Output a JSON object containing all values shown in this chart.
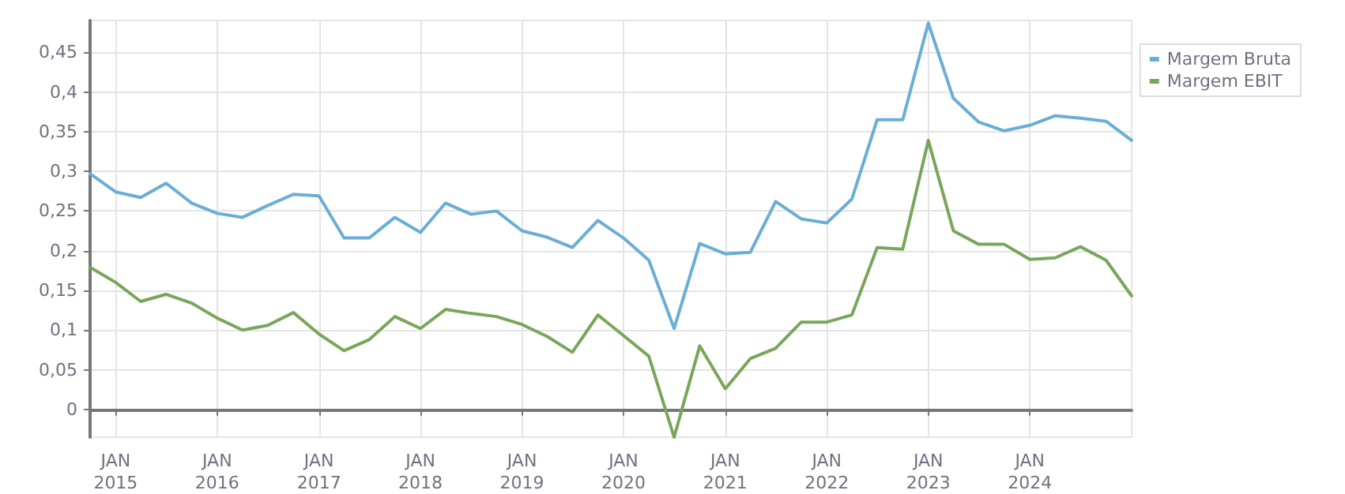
{
  "chart_data": {
    "type": "line",
    "x": [
      "2014-10",
      "2015-01",
      "2015-04",
      "2015-07",
      "2015-10",
      "2016-01",
      "2016-04",
      "2016-07",
      "2016-10",
      "2017-01",
      "2017-04",
      "2017-07",
      "2017-10",
      "2018-01",
      "2018-04",
      "2018-07",
      "2018-10",
      "2019-01",
      "2019-04",
      "2019-07",
      "2019-10",
      "2020-01",
      "2020-04",
      "2020-07",
      "2020-10",
      "2021-01",
      "2021-04",
      "2021-07",
      "2021-10",
      "2022-01",
      "2022-04",
      "2022-07",
      "2022-10",
      "2023-01",
      "2023-04",
      "2023-07",
      "2023-10",
      "2024-01",
      "2024-04",
      "2024-07",
      "2024-10",
      "2025-01"
    ],
    "series": [
      {
        "name": "Margem Bruta",
        "color": "#6aaed6",
        "values": [
          0.297,
          0.274,
          0.267,
          0.285,
          0.26,
          0.247,
          0.242,
          0.257,
          0.271,
          0.269,
          0.216,
          0.216,
          0.242,
          0.223,
          0.26,
          0.246,
          0.25,
          0.225,
          0.217,
          0.204,
          0.238,
          0.216,
          0.188,
          0.102,
          0.209,
          0.196,
          0.198,
          0.262,
          0.24,
          0.235,
          0.265,
          0.365,
          0.365,
          0.487,
          0.392,
          0.362,
          0.351,
          0.358,
          0.37,
          0.367,
          0.363,
          0.339
        ]
      },
      {
        "name": "Margem EBIT",
        "color": "#7aa65a",
        "values": [
          0.179,
          0.16,
          0.136,
          0.145,
          0.134,
          0.115,
          0.1,
          0.106,
          0.122,
          0.095,
          0.074,
          0.088,
          0.117,
          0.102,
          0.126,
          0.121,
          0.117,
          0.107,
          0.092,
          0.072,
          0.119,
          0.093,
          0.067,
          -0.035,
          0.08,
          0.026,
          0.064,
          0.077,
          0.11,
          0.11,
          0.119,
          0.204,
          0.202,
          0.339,
          0.225,
          0.208,
          0.208,
          0.189,
          0.191,
          0.205,
          0.188,
          0.143
        ]
      }
    ],
    "xlim": [
      "2014-10",
      "2025-01"
    ],
    "xticks": [
      {
        "value": "2015-01",
        "label": "JAN\n2015"
      },
      {
        "value": "2016-01",
        "label": "JAN\n2016"
      },
      {
        "value": "2017-01",
        "label": "JAN\n2017"
      },
      {
        "value": "2018-01",
        "label": "JAN\n2018"
      },
      {
        "value": "2019-01",
        "label": "JAN\n2019"
      },
      {
        "value": "2020-01",
        "label": "JAN\n2020"
      },
      {
        "value": "2021-01",
        "label": "JAN\n2021"
      },
      {
        "value": "2022-01",
        "label": "JAN\n2022"
      },
      {
        "value": "2023-01",
        "label": "JAN\n2023"
      },
      {
        "value": "2024-01",
        "label": "JAN\n2024"
      }
    ],
    "ylim": [
      -0.035,
      0.49
    ],
    "yticks": [
      {
        "value": 0,
        "label": "0"
      },
      {
        "value": 0.05,
        "label": "0,05"
      },
      {
        "value": 0.1,
        "label": "0,1"
      },
      {
        "value": 0.15,
        "label": "0,15"
      },
      {
        "value": 0.2,
        "label": "0,2"
      },
      {
        "value": 0.25,
        "label": "0,25"
      },
      {
        "value": 0.3,
        "label": "0,3"
      },
      {
        "value": 0.35,
        "label": "0,35"
      },
      {
        "value": 0.4,
        "label": "0,4"
      },
      {
        "value": 0.45,
        "label": "0,45"
      }
    ],
    "grid": true,
    "legend": "top right",
    "marker": "none",
    "line_style": "solid"
  }
}
